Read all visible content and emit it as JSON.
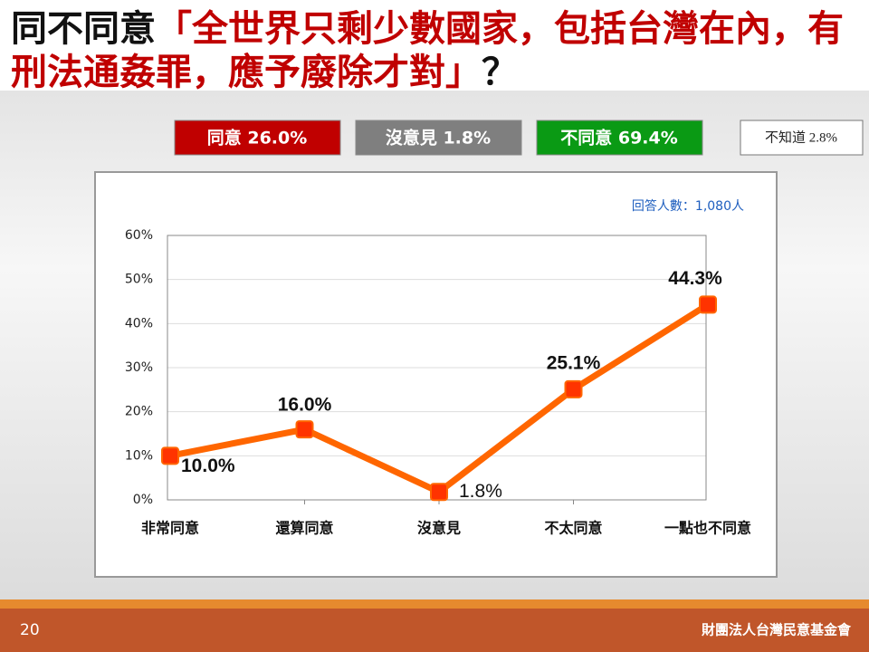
{
  "title": {
    "prefix": "同不同意",
    "quote": "「全世界只剩少數國家，包括台灣在內，有刑法通姦罪，應予廢除才對」",
    "suffix": "？"
  },
  "summary": [
    "同意 26.0%",
    "沒意見 1.8%",
    "不同意 69.4%",
    "不知道 2.8%"
  ],
  "chart_data": {
    "type": "line",
    "annotation": "回答人數：1,080人",
    "categories": [
      "非常同意",
      "還算同意",
      "沒意見",
      "不太同意",
      "一點也不同意"
    ],
    "values": [
      10.0,
      16.0,
      1.8,
      25.1,
      44.3
    ],
    "value_labels": [
      "10.0%",
      "16.0%",
      "1.8%",
      "25.1%",
      "44.3%"
    ],
    "color": "#ff6600",
    "ylim": [
      0,
      60
    ],
    "yticks": [
      {
        "value": 0,
        "label": "0%"
      },
      {
        "value": 10,
        "label": "10%"
      },
      {
        "value": 20,
        "label": "20%"
      },
      {
        "value": 30,
        "label": "30%"
      },
      {
        "value": 40,
        "label": "40%"
      },
      {
        "value": 50,
        "label": "50%"
      },
      {
        "value": 60,
        "label": "60%"
      }
    ],
    "grid": true
  },
  "footer": {
    "page": "20",
    "organization": "財團法人台灣民意基金會"
  }
}
